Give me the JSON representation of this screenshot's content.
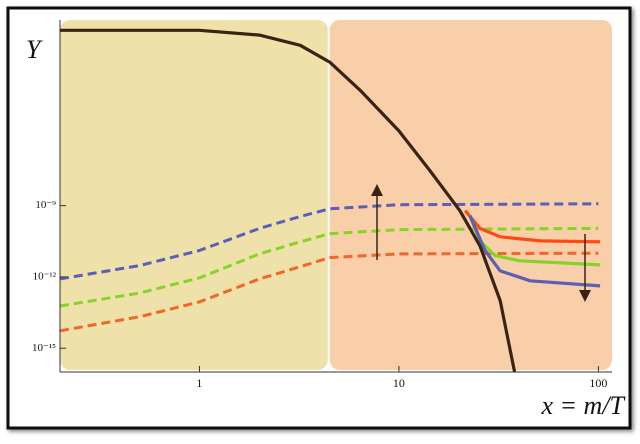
{
  "chart_data": {
    "type": "line",
    "y_label": "Y",
    "x_label": "x = m/T",
    "log_x": true,
    "log_y": true,
    "xlim": [
      0.2,
      117
    ],
    "ylim": [
      1e-16,
      0.065
    ],
    "xticks": [
      1,
      10,
      100
    ],
    "yticks": [
      {
        "value": 1e-09,
        "label": "10⁻⁹"
      },
      {
        "value": 1e-12,
        "label": "10⁻¹²"
      },
      {
        "value": 1e-15,
        "label": "10⁻¹⁵"
      }
    ],
    "regions": [
      {
        "xlim": [
          0.2,
          4.4
        ],
        "color": "#eee2aa"
      },
      {
        "xlim": [
          4.5,
          117
        ],
        "color": "#f9cfa9"
      }
    ],
    "series": [
      {
        "color": "#5b5fb5",
        "style": "dashed",
        "x": [
          0.2,
          0.5,
          1,
          2,
          3.2,
          4.5,
          10,
          100
        ],
        "values": [
          8.3e-13,
          3e-12,
          1.3e-11,
          1.1e-10,
          3.5e-10,
          7.4e-10,
          1.1e-09,
          1.2e-09
        ]
      },
      {
        "color": "#86d424",
        "style": "dashed",
        "x": [
          0.2,
          0.5,
          1,
          2,
          3.2,
          4.5,
          10,
          100
        ],
        "values": [
          6e-14,
          2.1e-13,
          9.1e-13,
          9.3e-12,
          3e-11,
          6.6e-11,
          9.8e-11,
          1.1e-10
        ]
      },
      {
        "color": "#f2662a",
        "style": "dashed",
        "x": [
          0.2,
          0.5,
          1,
          2,
          3.2,
          4.5,
          10,
          100
        ],
        "values": [
          5.4e-15,
          2.1e-14,
          8.9e-14,
          8.3e-13,
          2.7e-12,
          6.5e-12,
          9.3e-12,
          1e-11
        ]
      },
      {
        "color": "#ff4a14",
        "style": "solid",
        "x": [
          21.5,
          25.5,
          32.2,
          51.2,
          102
        ],
        "values": [
          6.2e-10,
          1.1e-10,
          4.9e-11,
          3.3e-11,
          3e-11
        ]
      },
      {
        "color": "#86d424",
        "style": "solid",
        "x": [
          22.7,
          25.5,
          30.4,
          40.5,
          102
        ],
        "values": [
          3.8e-10,
          3.3e-11,
          7.8e-12,
          4.8e-12,
          3.2e-12
        ]
      },
      {
        "color": "#5b5fb5",
        "style": "solid",
        "x": [
          22.7,
          27,
          32.2,
          45.5,
          102
        ],
        "values": [
          3.8e-10,
          1.3e-11,
          1.8e-12,
          6.9e-13,
          4.2e-13
        ]
      },
      {
        "color": "#3b2314",
        "style": "solid",
        "x": [
          0.2,
          1,
          2,
          3.2,
          4.5,
          6.4,
          10,
          14.3,
          20.2,
          25.5,
          32.2,
          38
        ],
        "values": [
          0.024,
          0.024,
          0.015,
          0.0056,
          0.0011,
          7.1e-05,
          1.4e-06,
          3e-08,
          6.2e-10,
          2e-11,
          1e-13,
          1e-16
        ]
      }
    ]
  }
}
